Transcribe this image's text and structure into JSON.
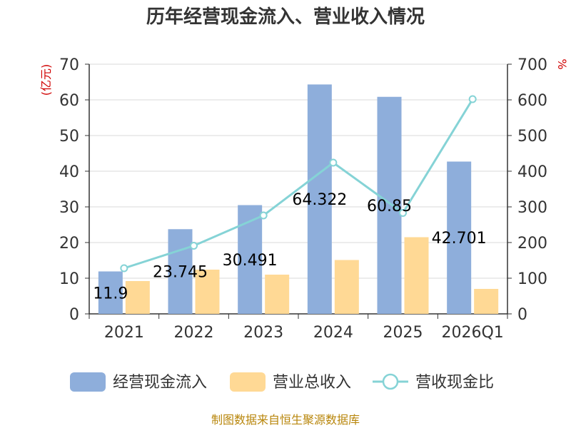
{
  "chart_data": {
    "type": "bar",
    "title": "历年经营现金流入、营业收入情况",
    "categories": [
      "2021",
      "2022",
      "2023",
      "2024",
      "2025",
      "2026Q1"
    ],
    "left_axis": {
      "unit": "(亿元)",
      "ylim": [
        0,
        70
      ],
      "ticks": [
        "0",
        "10",
        "20",
        "30",
        "40",
        "50",
        "60",
        "70"
      ]
    },
    "right_axis": {
      "unit": "%",
      "ylim": [
        0,
        700
      ],
      "ticks": [
        "0",
        "100",
        "200",
        "300",
        "400",
        "500",
        "600",
        "700"
      ]
    },
    "grid": true,
    "legend_position": "bottom",
    "series": [
      {
        "name": "经营现金流入",
        "kind": "bar",
        "axis": "left",
        "color": "#8eaedb",
        "values": [
          11.9,
          23.745,
          30.491,
          64.322,
          60.85,
          42.701
        ],
        "labels": [
          "11.9",
          "23.745",
          "30.491",
          "64.322",
          "60.85",
          "42.701"
        ]
      },
      {
        "name": "营业总收入",
        "kind": "bar",
        "axis": "left",
        "color": "#ffd995",
        "values": [
          9.2,
          12.4,
          11.0,
          15.1,
          21.5,
          7.0
        ]
      },
      {
        "name": "营收现金比",
        "kind": "line",
        "axis": "right",
        "color": "#85d3d6",
        "values": [
          128,
          191,
          276,
          424,
          283,
          602
        ]
      }
    ],
    "source": "制图数据来自恒生聚源数据库"
  }
}
